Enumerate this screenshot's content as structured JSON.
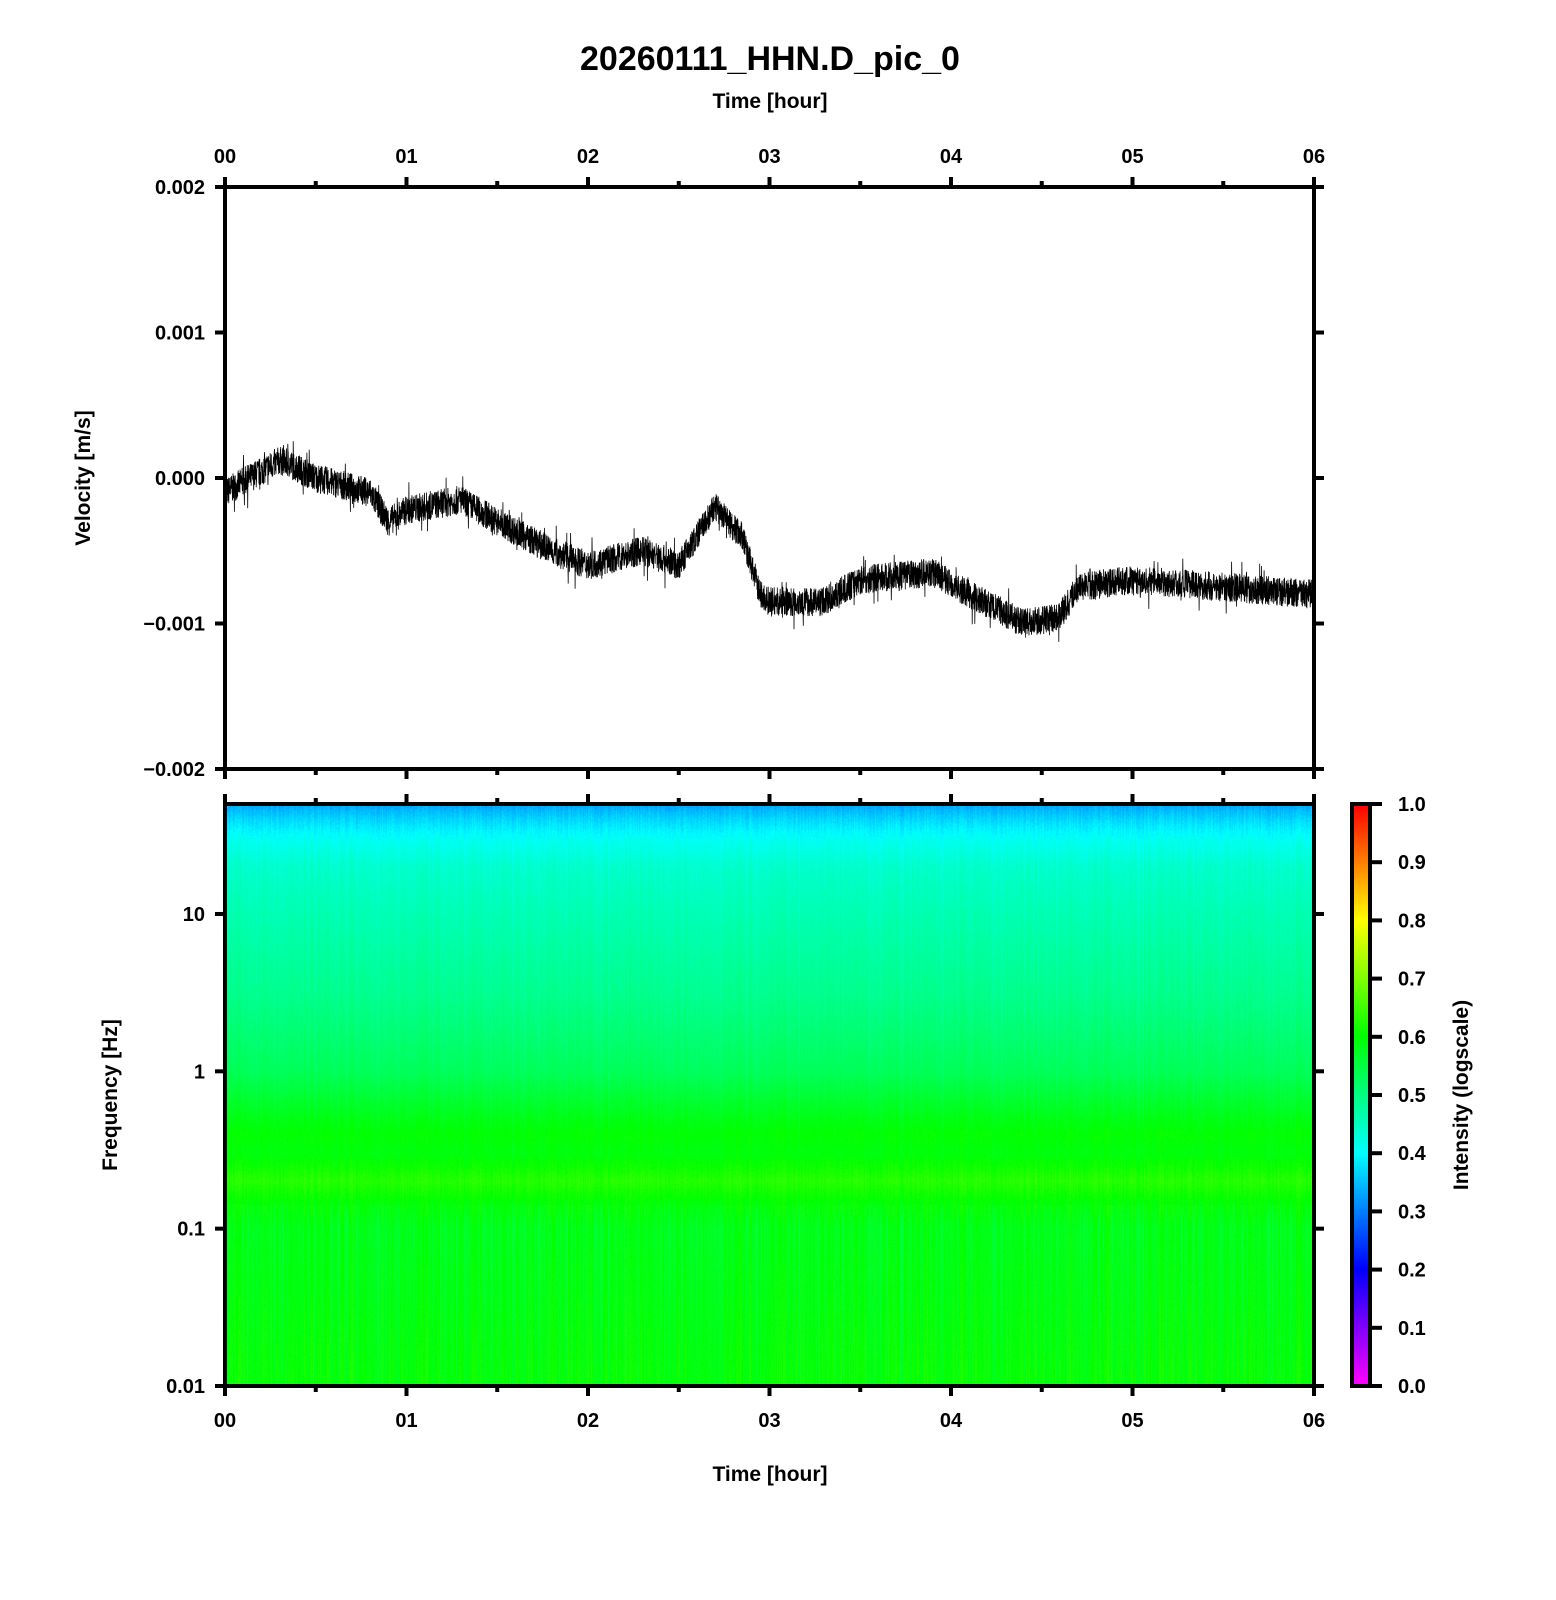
{
  "title": "20260111_HHN.D_pic_0",
  "chart_data": [
    {
      "type": "line",
      "name": "waveform",
      "xlabel": "Time [hour]",
      "ylabel": "Velocity [m/s]",
      "xlim": [
        0,
        6
      ],
      "ylim": [
        -0.002,
        0.002
      ],
      "xticks": [
        "00",
        "01",
        "02",
        "03",
        "04",
        "05",
        "06"
      ],
      "yticks": [
        "0.002",
        "0.001",
        "0.000",
        "−0.001",
        "−0.002"
      ],
      "trend_x": [
        0,
        0.3,
        0.35,
        0.5,
        0.8,
        0.9,
        1.0,
        1.3,
        1.5,
        1.8,
        2.0,
        2.3,
        2.5,
        2.7,
        2.85,
        2.95,
        3.0,
        3.3,
        3.5,
        3.9,
        4.1,
        4.4,
        4.6,
        4.7,
        5.0,
        5.5,
        6.0
      ],
      "trend_y": [
        -0.0001,
        0.00012,
        0.0001,
        0,
        -0.0001,
        -0.0003,
        -0.00022,
        -0.00015,
        -0.0003,
        -0.0005,
        -0.0006,
        -0.0005,
        -0.0006,
        -0.0002,
        -0.0004,
        -0.0008,
        -0.00085,
        -0.00085,
        -0.0007,
        -0.00065,
        -0.0008,
        -0.001,
        -0.00095,
        -0.00075,
        -0.0007,
        -0.00075,
        -0.0008
      ],
      "noise_amplitude": 0.0001,
      "color": "#000000"
    },
    {
      "type": "heatmap",
      "name": "spectrogram",
      "xlabel": "Time [hour]",
      "ylabel": "Frequency [Hz]",
      "xlim": [
        0,
        6
      ],
      "ylim": [
        0.01,
        50
      ],
      "yscale": "log",
      "xticks": [
        "00",
        "01",
        "02",
        "03",
        "04",
        "05",
        "06"
      ],
      "yticks": [
        "10",
        "1",
        "0.1",
        "0.01"
      ],
      "profile_freq": [
        50,
        40,
        30,
        20,
        10,
        3,
        1,
        0.6,
        0.4,
        0.3,
        0.2,
        0.15,
        0.1,
        0.03,
        0.01
      ],
      "profile_intensity": [
        0.33,
        0.37,
        0.41,
        0.44,
        0.46,
        0.49,
        0.53,
        0.57,
        0.6,
        0.59,
        0.63,
        0.6,
        0.58,
        0.59,
        0.6
      ],
      "colorbar": {
        "label": "Intensity (logscale)",
        "range": [
          0,
          1
        ],
        "ticks": [
          "1.0",
          "0.9",
          "0.8",
          "0.7",
          "0.6",
          "0.5",
          "0.4",
          "0.3",
          "0.2",
          "0.1",
          "0.0"
        ],
        "colormap": [
          "#ff00ff",
          "#0000ff",
          "#00ffff",
          "#00ff00",
          "#ffff00",
          "#ff0000"
        ]
      }
    }
  ]
}
